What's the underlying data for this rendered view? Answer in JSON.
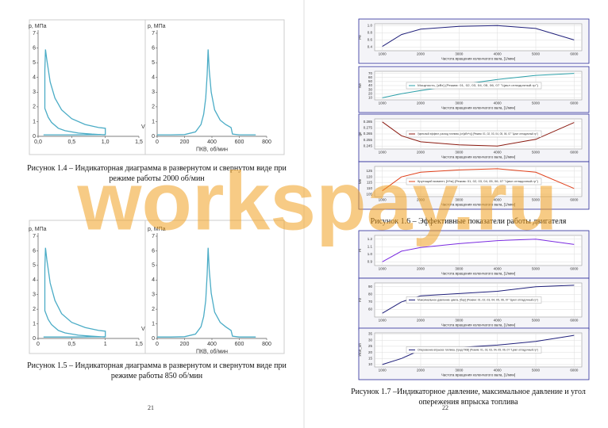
{
  "watermark": "workspay.ru",
  "left_page": {
    "page_number": "21",
    "figures": [
      {
        "caption": "Рисунок 1.4 – Индикаторная диаграмма в развернутом и свернутом виде при режиме работы 2000 об/мин",
        "pv": {
          "ylabel": "p, МПа",
          "xlabel": "V",
          "color": "#4bacc6",
          "xlim": [
            0,
            1.5
          ],
          "ylim": [
            0,
            7
          ],
          "xticks": [
            {
              "value": 0,
              "label": "0,0"
            },
            {
              "value": 0.5,
              "label": "0,5"
            },
            {
              "value": 1,
              "label": "1,0"
            },
            {
              "value": 1.5,
              "label": "1,5"
            }
          ],
          "yticks": [
            0,
            1,
            2,
            3,
            4,
            5,
            6,
            7
          ],
          "x": [
            1.0,
            0.8,
            0.6,
            0.4,
            0.3,
            0.2,
            0.15,
            0.1,
            0.1,
            0.11,
            0.13,
            0.18,
            0.25,
            0.35,
            0.5,
            0.7,
            0.9,
            1.0,
            1.0,
            0.5,
            0.08
          ],
          "y": [
            0.1,
            0.15,
            0.22,
            0.38,
            0.55,
            0.95,
            1.3,
            1.9,
            4.5,
            5.9,
            5.2,
            3.7,
            2.6,
            1.8,
            1.2,
            0.8,
            0.6,
            0.55,
            0.12,
            0.1,
            0.1
          ]
        },
        "pphi": {
          "ylabel": "p, МПа",
          "xlabel": "ПКВ, об/мин",
          "color": "#4bacc6",
          "xlim": [
            0,
            800
          ],
          "ylim": [
            0,
            7
          ],
          "xticks": [
            0,
            200,
            400,
            600,
            800
          ],
          "yticks": [
            0,
            1,
            2,
            3,
            4,
            5,
            6,
            7
          ],
          "x": [
            0,
            100,
            200,
            280,
            320,
            340,
            355,
            365,
            372,
            380,
            395,
            420,
            460,
            500,
            540,
            550,
            600,
            720
          ],
          "y": [
            0.1,
            0.1,
            0.12,
            0.3,
            0.8,
            1.5,
            2.6,
            4.2,
            5.9,
            4.5,
            3.0,
            1.8,
            1.1,
            0.8,
            0.6,
            0.15,
            0.1,
            0.1
          ]
        }
      },
      {
        "caption": "Рисунок 1.5 – Индикаторная диаграмма в развернутом и свернутом виде при режиме работы 850 об/мин",
        "pv": {
          "ylabel": "p, МПа",
          "xlabel": "V",
          "color": "#4bacc6",
          "xlim": [
            0,
            1.5
          ],
          "ylim": [
            0,
            7
          ],
          "xticks": [
            {
              "value": 0,
              "label": "0"
            },
            {
              "value": 0.5,
              "label": "0,5"
            },
            {
              "value": 1,
              "label": "1"
            },
            {
              "value": 1.5,
              "label": "1,5"
            }
          ],
          "yticks": [
            0,
            1,
            2,
            3,
            4,
            5,
            6,
            7
          ],
          "x": [
            1.0,
            0.8,
            0.6,
            0.4,
            0.3,
            0.2,
            0.15,
            0.1,
            0.1,
            0.11,
            0.13,
            0.18,
            0.25,
            0.35,
            0.5,
            0.7,
            0.9,
            1.0,
            1.0,
            0.5,
            0.08
          ],
          "y": [
            0.1,
            0.15,
            0.22,
            0.38,
            0.55,
            0.95,
            1.3,
            1.9,
            4.8,
            6.2,
            5.4,
            3.8,
            2.6,
            1.7,
            1.1,
            0.75,
            0.55,
            0.5,
            0.12,
            0.1,
            0.1
          ]
        },
        "pphi": {
          "ylabel": "p, МПа",
          "xlabel": "ПКВ, об/мин",
          "color": "#4bacc6",
          "xlim": [
            0,
            800
          ],
          "ylim": [
            0,
            7
          ],
          "xticks": [
            0,
            200,
            400,
            600,
            800
          ],
          "yticks": [
            0,
            1,
            2,
            3,
            4,
            5,
            6,
            7
          ],
          "x": [
            0,
            100,
            200,
            280,
            320,
            340,
            355,
            365,
            372,
            380,
            395,
            420,
            460,
            500,
            540,
            550,
            600,
            720
          ],
          "y": [
            0.1,
            0.1,
            0.12,
            0.3,
            0.8,
            1.5,
            2.6,
            4.4,
            6.2,
            4.7,
            3.1,
            1.8,
            1.1,
            0.8,
            0.55,
            0.15,
            0.1,
            0.1
          ]
        }
      }
    ]
  },
  "right_page": {
    "page_number": "22",
    "figures": [
      {
        "caption": "Рисунок 1.6 – Эффективные показатели работы двигателя",
        "plots": [
          {
            "ylabel": "Pe",
            "xlabel": "Частота вращения коленчатого вала, [1/мин]",
            "color": "#1f1f7a",
            "xlim": [
              800,
              6200
            ],
            "ylim": [
              0.3,
              1.05
            ],
            "xticks": [
              1000,
              2000,
              3000,
              4000,
              5000,
              6000
            ],
            "yticks": [
              0.4,
              0.6,
              0.8,
              {
                "value": 1,
                "label": "1.0"
              }
            ],
            "x": [
              1000,
              1500,
              2000,
              3000,
              4000,
              5000,
              6000
            ],
            "y": [
              0.42,
              0.75,
              0.9,
              0.98,
              1.0,
              0.92,
              0.6
            ]
          },
          {
            "ylabel": "Ne",
            "xlabel": "Частота вращения коленчатого вала, [1/мин]",
            "color": "#2a9fa8",
            "legend": "Мощность, [кВт] (Режим: 01, 02, 03, 04, 05, 06, 07 \"Цикл отладочный.гр\")",
            "xlim": [
              800,
              6200
            ],
            "ylim": [
              5,
              75
            ],
            "xticks": [
              1000,
              2000,
              3000,
              4000,
              5000,
              6000
            ],
            "yticks": [
              10,
              20,
              30,
              40,
              50,
              60,
              70
            ],
            "x": [
              1000,
              1500,
              2000,
              3000,
              4000,
              5000,
              6000
            ],
            "y": [
              10,
              20,
              28,
              42,
              55,
              65,
              70
            ]
          },
          {
            "ylabel": "ge",
            "xlabel": "Частота вращения коленчатого вала, [1/мин]",
            "color": "#8b1a10",
            "legend": "Удельный эффект. расход топлива, [кг/(кВт*ч)] (Режим: 01, 02, 03, 04, 05, 06, 07 \"Цикл отладочный.гр\")",
            "xlim": [
              800,
              6200
            ],
            "ylim": [
              0.24,
              0.29
            ],
            "xticks": [
              1000,
              2000,
              3000,
              4000,
              5000,
              6000
            ],
            "yticks": [
              0.245,
              0.255,
              0.265,
              0.275,
              0.285
            ],
            "x": [
              1000,
              1500,
              2000,
              3000,
              4000,
              5000,
              6000
            ],
            "y": [
              0.285,
              0.262,
              0.252,
              0.247,
              0.245,
              0.256,
              0.284
            ]
          },
          {
            "ylabel": "Me",
            "xlabel": "Частота вращения коленчатого вала, [1/мин]",
            "color": "#e0401a",
            "legend": "Крутящий момент, [Н*м] (Режим: 01, 02, 03, 04, 05, 06, 07 \"Цикл отладочный.гр\")",
            "xlim": [
              800,
              6200
            ],
            "ylim": [
              103,
              129
            ],
            "xticks": [
              1000,
              2000,
              3000,
              4000,
              5000,
              6000
            ],
            "yticks": [
              105,
              110,
              115,
              120,
              125
            ],
            "x": [
              1000,
              1500,
              2000,
              3000,
              4000,
              5000,
              6000
            ],
            "y": [
              108,
              120,
              124,
              126,
              127,
              124,
              110
            ]
          }
        ]
      },
      {
        "caption": "Рисунок 1.7 –Индикаторное давление, максимальное давление и угол опережения впрыска топлива",
        "plots": [
          {
            "ylabel": "Pi",
            "xlabel": "Частота вращения коленчатого вала, [1/мин]",
            "color": "#7a2be0",
            "xlim": [
              800,
              6200
            ],
            "ylim": [
              0.85,
              1.25
            ],
            "xticks": [
              1000,
              2000,
              3000,
              4000,
              5000,
              6000
            ],
            "yticks": [
              0.9,
              {
                "value": 1,
                "label": "1.0"
              },
              1.1,
              1.2
            ],
            "x": [
              1000,
              1500,
              2000,
              3000,
              4000,
              5000,
              6000
            ],
            "y": [
              0.9,
              1.04,
              1.09,
              1.14,
              1.18,
              1.2,
              1.13
            ]
          },
          {
            "ylabel": "Pz",
            "xlabel": "Частота вращения коленчатого вала, [1/мин]",
            "color": "#1f1f7a",
            "legend": "Максимальное давление цикла, [бар] (Режим: 01, 02, 03, 04, 05, 06, 07 \"Цикл отладочный.гр\")",
            "xlim": [
              800,
              6200
            ],
            "ylim": [
              50,
              95
            ],
            "xticks": [
              1000,
              2000,
              3000,
              4000,
              5000,
              6000
            ],
            "yticks": [
              60,
              70,
              80,
              90
            ],
            "x": [
              1000,
              1500,
              2000,
              3000,
              4000,
              5000,
              6000
            ],
            "y": [
              55,
              70,
              78,
              81,
              84,
              90,
              92
            ]
          },
          {
            "ylabel": "Угол_оп",
            "xlabel": "Частота вращения коленчатого вала, [1/мин]",
            "color": "#1f1f7a",
            "legend": "Опережение впрыска топлива, [град ПКВ] (Режим: 01, 02, 03, 04, 05, 06, 07 \"Цикл отладочный.гр\")",
            "xlim": [
              800,
              6200
            ],
            "ylim": [
              8,
              36
            ],
            "xticks": [
              1000,
              2000,
              3000,
              4000,
              5000,
              6000
            ],
            "yticks": [
              10,
              15,
              20,
              25,
              30,
              35
            ],
            "x": [
              1000,
              1500,
              2000,
              3000,
              4000,
              5000,
              6000
            ],
            "y": [
              10,
              15,
              22,
              24,
              26,
              29,
              34
            ]
          }
        ]
      }
    ]
  }
}
